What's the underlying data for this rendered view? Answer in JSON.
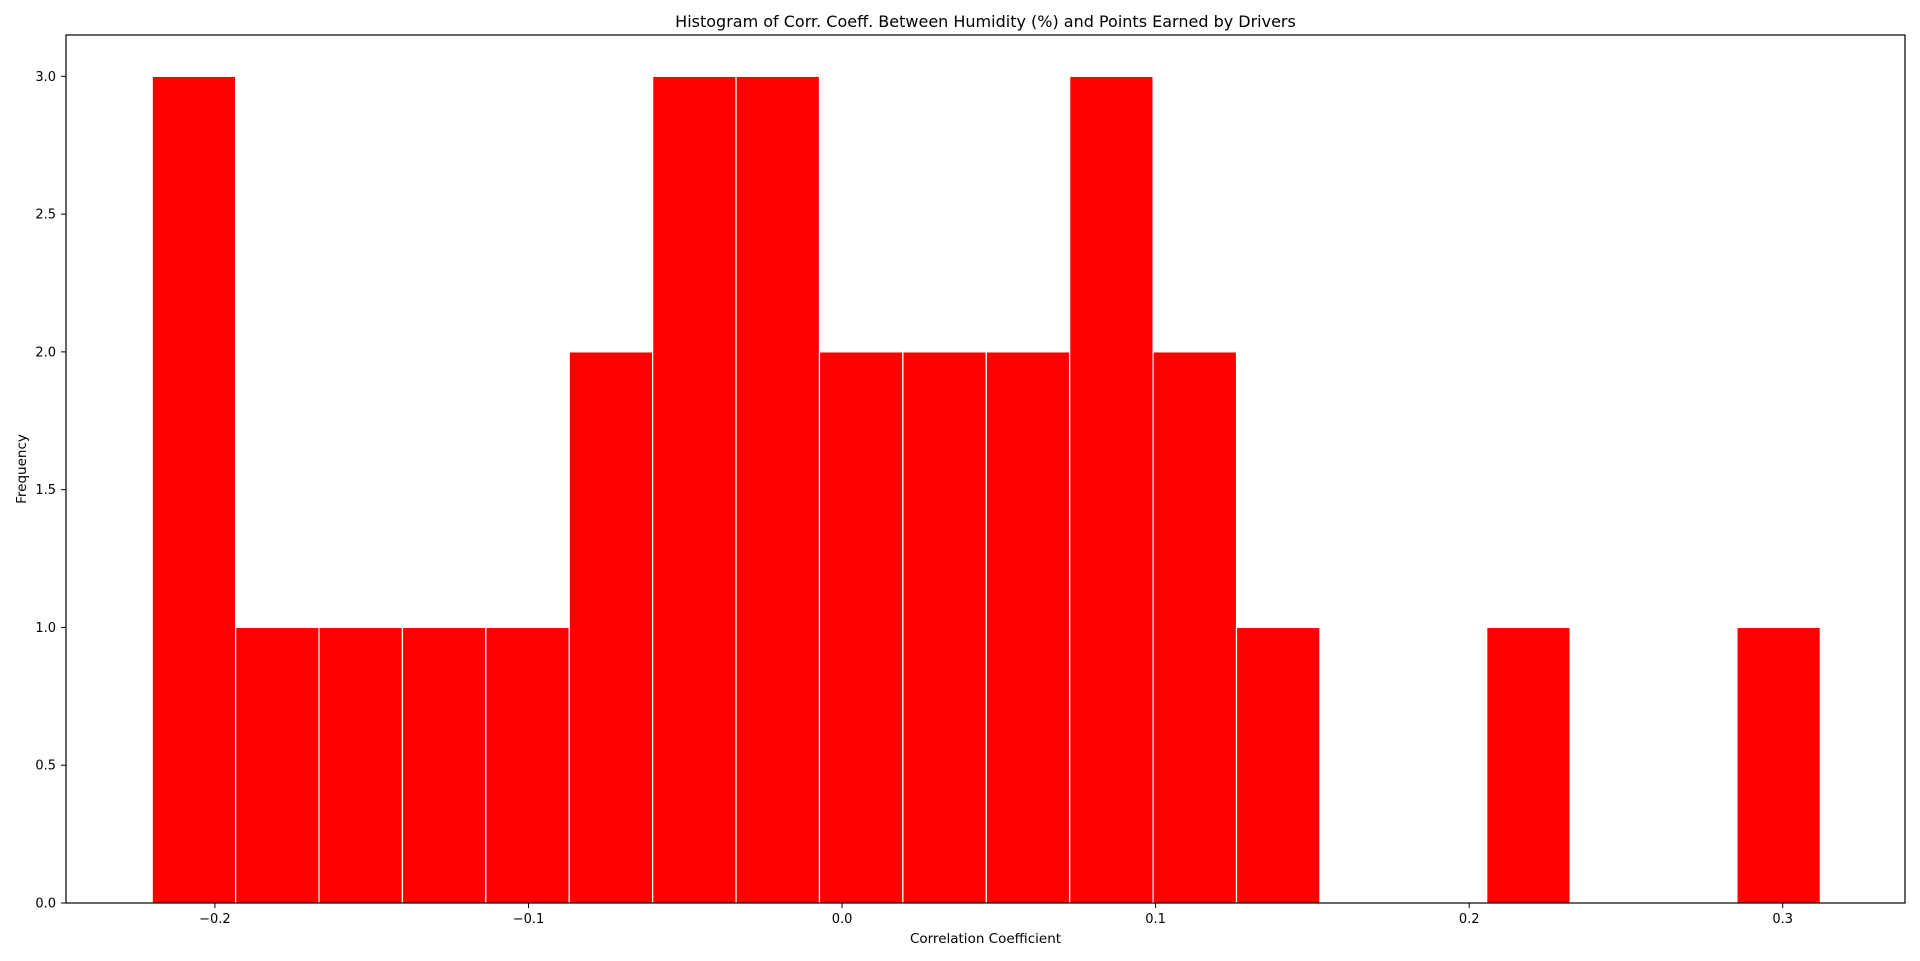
{
  "chart_data": {
    "type": "bar",
    "title": "Histogram of Corr. Coeff. Between Humidity (%) and Points Earned by Drivers",
    "xlabel": "Correlation Coefficient",
    "ylabel": "Frequency",
    "xlim": [
      -0.2475,
      0.339
    ],
    "ylim": [
      0,
      3.15
    ],
    "bar_color": "#ff0000",
    "edge_color": "#ffffff",
    "grid": false,
    "bin_edges": [
      -0.22,
      -0.1934,
      -0.1668,
      -0.1402,
      -0.1136,
      -0.087,
      -0.0604,
      -0.0338,
      -0.0072,
      0.0194,
      0.046,
      0.0726,
      0.0992,
      0.1258,
      0.1524,
      0.179,
      0.2056,
      0.2322,
      0.2588,
      0.2854,
      0.312
    ],
    "values": [
      3,
      1,
      1,
      1,
      1,
      2,
      3,
      3,
      2,
      2,
      2,
      3,
      2,
      1,
      0,
      0,
      1,
      0,
      0,
      1
    ],
    "x_ticks": [
      {
        "value": -0.2,
        "label": "−0.2"
      },
      {
        "value": -0.1,
        "label": "−0.1"
      },
      {
        "value": 0.0,
        "label": "0.0"
      },
      {
        "value": 0.1,
        "label": "0.1"
      },
      {
        "value": 0.2,
        "label": "0.2"
      },
      {
        "value": 0.3,
        "label": "0.3"
      }
    ],
    "y_ticks": [
      {
        "value": 0.0,
        "label": "0.0"
      },
      {
        "value": 0.5,
        "label": "0.5"
      },
      {
        "value": 1.0,
        "label": "1.0"
      },
      {
        "value": 1.5,
        "label": "1.5"
      },
      {
        "value": 2.0,
        "label": "2.0"
      },
      {
        "value": 2.5,
        "label": "2.5"
      },
      {
        "value": 3.0,
        "label": "3.0"
      }
    ]
  }
}
